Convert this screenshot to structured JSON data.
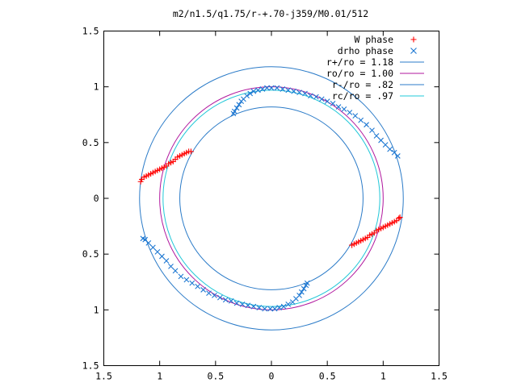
{
  "chart_data": {
    "type": "scatter",
    "title": "m2/n1.5/q1.75/r-+.70-j359/M0.01/512",
    "xlabel": "",
    "ylabel": "",
    "xlim": [
      -1.5,
      1.5
    ],
    "ylim": [
      -1.5,
      1.5
    ],
    "x_ticks": [
      -1.5,
      -1,
      -0.5,
      0,
      0.5,
      1,
      1.5
    ],
    "y_ticks": [
      -1.5,
      -1,
      -0.5,
      0,
      0.5,
      1,
      1.5
    ],
    "x_tick_labels": [
      "1.5",
      "1",
      "0.5",
      "0",
      "0.5",
      "1",
      "1.5"
    ],
    "y_tick_labels": [
      "1.5",
      "1",
      "0.5",
      "0",
      "0.5",
      "1",
      "1.5"
    ],
    "grid": false,
    "legend_position": "top-right",
    "circles": [
      {
        "name": "r+/ro = 1.18",
        "radius": 1.18,
        "color": "#2b7bc8"
      },
      {
        "name": "ro/ro = 1.00",
        "radius": 1.0,
        "color": "#b1179e"
      },
      {
        "name": "r-/ro = .82",
        "radius": 0.82,
        "color": "#2b7bc8"
      },
      {
        "name": "rc/ro = .97",
        "radius": 0.97,
        "color": "#22c8d8"
      }
    ],
    "series": [
      {
        "name": "W phase",
        "marker": "plus",
        "color": "#ff0000",
        "points": [
          [
            -1.17,
            0.15
          ],
          [
            -1.16,
            0.17
          ],
          [
            -1.14,
            0.19
          ],
          [
            -1.12,
            0.2
          ],
          [
            -1.1,
            0.21
          ],
          [
            -1.08,
            0.22
          ],
          [
            -1.06,
            0.23
          ],
          [
            -1.04,
            0.24
          ],
          [
            -1.02,
            0.25
          ],
          [
            -1.0,
            0.26
          ],
          [
            -0.98,
            0.27
          ],
          [
            -0.96,
            0.28
          ],
          [
            -0.94,
            0.29
          ],
          [
            -0.92,
            0.31
          ],
          [
            -0.9,
            0.32
          ],
          [
            -0.88,
            0.33
          ],
          [
            -0.86,
            0.35
          ],
          [
            -0.84,
            0.37
          ],
          [
            -0.82,
            0.38
          ],
          [
            -0.8,
            0.39
          ],
          [
            -0.78,
            0.4
          ],
          [
            -0.76,
            0.41
          ],
          [
            -0.74,
            0.42
          ],
          [
            -0.72,
            0.42
          ],
          [
            1.15,
            -0.17
          ],
          [
            1.14,
            -0.18
          ],
          [
            1.12,
            -0.2
          ],
          [
            1.1,
            -0.21
          ],
          [
            1.08,
            -0.22
          ],
          [
            1.06,
            -0.23
          ],
          [
            1.04,
            -0.24
          ],
          [
            1.02,
            -0.25
          ],
          [
            1.0,
            -0.26
          ],
          [
            0.98,
            -0.27
          ],
          [
            0.96,
            -0.28
          ],
          [
            0.94,
            -0.29
          ],
          [
            0.92,
            -0.31
          ],
          [
            0.9,
            -0.32
          ],
          [
            0.88,
            -0.33
          ],
          [
            0.86,
            -0.35
          ],
          [
            0.84,
            -0.36
          ],
          [
            0.82,
            -0.37
          ],
          [
            0.8,
            -0.38
          ],
          [
            0.78,
            -0.39
          ],
          [
            0.76,
            -0.4
          ],
          [
            0.74,
            -0.41
          ],
          [
            0.72,
            -0.42
          ]
        ]
      },
      {
        "name": "drho phase",
        "marker": "cross",
        "color": "#1e78d2",
        "points": [
          [
            -0.34,
            0.76
          ],
          [
            -0.33,
            0.78
          ],
          [
            -0.31,
            0.81
          ],
          [
            -0.29,
            0.84
          ],
          [
            -0.27,
            0.87
          ],
          [
            -0.25,
            0.89
          ],
          [
            -0.22,
            0.92
          ],
          [
            -0.19,
            0.94
          ],
          [
            -0.16,
            0.96
          ],
          [
            -0.12,
            0.97
          ],
          [
            -0.08,
            0.98
          ],
          [
            -0.04,
            0.99
          ],
          [
            0.0,
            0.99
          ],
          [
            0.05,
            0.99
          ],
          [
            0.1,
            0.98
          ],
          [
            0.15,
            0.97
          ],
          [
            0.2,
            0.96
          ],
          [
            0.25,
            0.95
          ],
          [
            0.3,
            0.94
          ],
          [
            0.35,
            0.92
          ],
          [
            0.4,
            0.91
          ],
          [
            0.45,
            0.89
          ],
          [
            0.5,
            0.87
          ],
          [
            0.55,
            0.85
          ],
          [
            0.6,
            0.82
          ],
          [
            0.65,
            0.8
          ],
          [
            0.7,
            0.77
          ],
          [
            0.75,
            0.74
          ],
          [
            0.8,
            0.7
          ],
          [
            0.85,
            0.66
          ],
          [
            0.9,
            0.61
          ],
          [
            0.94,
            0.56
          ],
          [
            0.98,
            0.52
          ],
          [
            1.02,
            0.48
          ],
          [
            1.06,
            0.44
          ],
          [
            1.1,
            0.41
          ],
          [
            1.13,
            0.38
          ],
          [
            0.32,
            -0.76
          ],
          [
            0.31,
            -0.78
          ],
          [
            0.29,
            -0.81
          ],
          [
            0.27,
            -0.84
          ],
          [
            0.25,
            -0.87
          ],
          [
            0.22,
            -0.9
          ],
          [
            0.19,
            -0.93
          ],
          [
            0.15,
            -0.95
          ],
          [
            0.11,
            -0.97
          ],
          [
            0.07,
            -0.98
          ],
          [
            0.03,
            -0.99
          ],
          [
            -0.01,
            -0.99
          ],
          [
            -0.06,
            -0.99
          ],
          [
            -0.11,
            -0.98
          ],
          [
            -0.16,
            -0.97
          ],
          [
            -0.21,
            -0.96
          ],
          [
            -0.26,
            -0.95
          ],
          [
            -0.31,
            -0.94
          ],
          [
            -0.36,
            -0.92
          ],
          [
            -0.41,
            -0.91
          ],
          [
            -0.46,
            -0.89
          ],
          [
            -0.51,
            -0.87
          ],
          [
            -0.56,
            -0.85
          ],
          [
            -0.61,
            -0.82
          ],
          [
            -0.66,
            -0.79
          ],
          [
            -0.71,
            -0.76
          ],
          [
            -0.76,
            -0.73
          ],
          [
            -0.81,
            -0.7
          ],
          [
            -0.86,
            -0.65
          ],
          [
            -0.9,
            -0.61
          ],
          [
            -0.94,
            -0.56
          ],
          [
            -0.98,
            -0.52
          ],
          [
            -1.02,
            -0.48
          ],
          [
            -1.06,
            -0.44
          ],
          [
            -1.1,
            -0.4
          ],
          [
            -1.13,
            -0.37
          ],
          [
            -1.15,
            -0.36
          ]
        ]
      }
    ]
  }
}
